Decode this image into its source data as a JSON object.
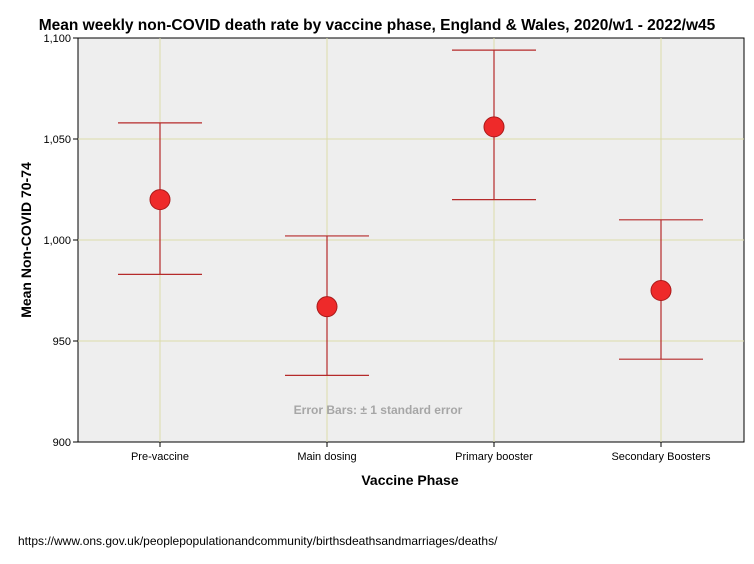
{
  "chart_data": {
    "type": "scatter",
    "subtype": "error-bar",
    "title": "Mean weekly non-COVID death rate by vaccine phase, England & Wales, 2020/w1 - 2022/w45",
    "xlabel": "Vaccine Phase",
    "ylabel": "Mean Non-COVID 70-74",
    "ylim": [
      900,
      1100
    ],
    "yticks": [
      900,
      950,
      1000,
      1050,
      1100
    ],
    "ytick_labels": [
      "900",
      "950",
      "1,000",
      "1,050",
      "1,100"
    ],
    "grid": true,
    "categories": [
      "Pre-vaccine",
      "Main dosing",
      "Primary booster",
      "Secondary Boosters"
    ],
    "series": [
      {
        "name": "Mean Non-COVID 70-74",
        "values": [
          1020,
          967,
          1056,
          975
        ],
        "lower": [
          983,
          933,
          1020,
          941
        ],
        "upper": [
          1058,
          1002,
          1094,
          1010
        ]
      }
    ],
    "annotation": "Error Bars: ± 1 standard error",
    "colors": {
      "plot_background": "#eeeeee",
      "grid": "#dcdcaa",
      "marker_fill": "#ee2a2a",
      "marker_stroke": "#aa1a1a",
      "error_bar": "#b52a2a"
    }
  },
  "source": "https://www.ons.gov.uk/peoplepopulationandcommunity/birthsdeathsandmarriages/deaths/"
}
